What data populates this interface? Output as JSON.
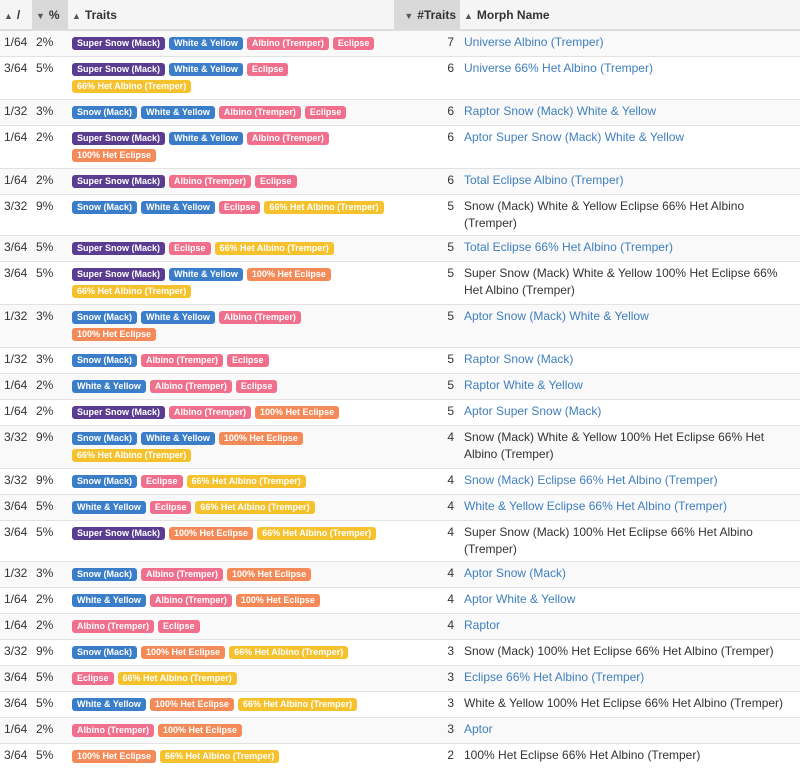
{
  "headers": {
    "ratio": "/",
    "percent": "%",
    "traits": "Traits",
    "num_traits": "#Traits",
    "morph_name": "Morph Name"
  },
  "rows": [
    {
      "ratio": "1/64",
      "pct": "2%",
      "traits": [
        [
          "Super Snow (Mack)",
          "supersnow"
        ],
        [
          "White & Yellow",
          "wy"
        ],
        [
          "Albino (Tremper)",
          "albino"
        ],
        [
          "Eclipse",
          "eclipse"
        ]
      ],
      "n": "7",
      "name": "Universe Albino (Tremper)",
      "link": true
    },
    {
      "ratio": "3/64",
      "pct": "5%",
      "traits": [
        [
          "Super Snow (Mack)",
          "supersnow"
        ],
        [
          "White & Yellow",
          "wy"
        ],
        [
          "Eclipse",
          "eclipse"
        ],
        [
          "66% Het Albino (Tremper)",
          "hetalb"
        ]
      ],
      "n": "6",
      "name": "Universe 66% Het Albino (Tremper)",
      "link": true
    },
    {
      "ratio": "1/32",
      "pct": "3%",
      "traits": [
        [
          "Snow (Mack)",
          "snow"
        ],
        [
          "White & Yellow",
          "wy"
        ],
        [
          "Albino (Tremper)",
          "albino"
        ],
        [
          "Eclipse",
          "eclipse"
        ]
      ],
      "n": "6",
      "name": "Raptor Snow (Mack) White & Yellow",
      "link": true
    },
    {
      "ratio": "1/64",
      "pct": "2%",
      "traits": [
        [
          "Super Snow (Mack)",
          "supersnow"
        ],
        [
          "White & Yellow",
          "wy"
        ],
        [
          "Albino (Tremper)",
          "albino"
        ],
        [
          "100% Het Eclipse",
          "hetecl"
        ]
      ],
      "n": "6",
      "name": "Aptor Super Snow (Mack) White & Yellow",
      "link": true
    },
    {
      "ratio": "1/64",
      "pct": "2%",
      "traits": [
        [
          "Super Snow (Mack)",
          "supersnow"
        ],
        [
          "Albino (Tremper)",
          "albino"
        ],
        [
          "Eclipse",
          "eclipse"
        ]
      ],
      "n": "6",
      "name": "Total Eclipse Albino (Tremper)",
      "link": true
    },
    {
      "ratio": "3/32",
      "pct": "9%",
      "traits": [
        [
          "Snow (Mack)",
          "snow"
        ],
        [
          "White & Yellow",
          "wy"
        ],
        [
          "Eclipse",
          "eclipse"
        ],
        [
          "66% Het Albino (Tremper)",
          "hetalb"
        ]
      ],
      "n": "5",
      "name": "Snow (Mack) White & Yellow Eclipse 66% Het Albino (Tremper)",
      "link": false
    },
    {
      "ratio": "3/64",
      "pct": "5%",
      "traits": [
        [
          "Super Snow (Mack)",
          "supersnow"
        ],
        [
          "Eclipse",
          "eclipse"
        ],
        [
          "66% Het Albino (Tremper)",
          "hetalb"
        ]
      ],
      "n": "5",
      "name": "Total Eclipse 66% Het Albino (Tremper)",
      "link": true
    },
    {
      "ratio": "3/64",
      "pct": "5%",
      "traits": [
        [
          "Super Snow (Mack)",
          "supersnow"
        ],
        [
          "White & Yellow",
          "wy"
        ],
        [
          "100% Het Eclipse",
          "hetecl"
        ],
        [
          "66% Het Albino (Tremper)",
          "hetalb"
        ]
      ],
      "n": "5",
      "name": "Super Snow (Mack) White & Yellow 100% Het Eclipse 66% Het Albino (Tremper)",
      "link": false
    },
    {
      "ratio": "1/32",
      "pct": "3%",
      "traits": [
        [
          "Snow (Mack)",
          "snow"
        ],
        [
          "White & Yellow",
          "wy"
        ],
        [
          "Albino (Tremper)",
          "albino"
        ],
        [
          "100% Het Eclipse",
          "hetecl"
        ]
      ],
      "n": "5",
      "name": "Aptor Snow (Mack) White & Yellow",
      "link": true
    },
    {
      "ratio": "1/32",
      "pct": "3%",
      "traits": [
        [
          "Snow (Mack)",
          "snow"
        ],
        [
          "Albino (Tremper)",
          "albino"
        ],
        [
          "Eclipse",
          "eclipse"
        ]
      ],
      "n": "5",
      "name": "Raptor Snow (Mack)",
      "link": true
    },
    {
      "ratio": "1/64",
      "pct": "2%",
      "traits": [
        [
          "White & Yellow",
          "wy"
        ],
        [
          "Albino (Tremper)",
          "albino"
        ],
        [
          "Eclipse",
          "eclipse"
        ]
      ],
      "n": "5",
      "name": "Raptor White & Yellow",
      "link": true
    },
    {
      "ratio": "1/64",
      "pct": "2%",
      "traits": [
        [
          "Super Snow (Mack)",
          "supersnow"
        ],
        [
          "Albino (Tremper)",
          "albino"
        ],
        [
          "100% Het Eclipse",
          "hetecl"
        ]
      ],
      "n": "5",
      "name": "Aptor Super Snow (Mack)",
      "link": true
    },
    {
      "ratio": "3/32",
      "pct": "9%",
      "traits": [
        [
          "Snow (Mack)",
          "snow"
        ],
        [
          "White & Yellow",
          "wy"
        ],
        [
          "100% Het Eclipse",
          "hetecl"
        ],
        [
          "66% Het Albino (Tremper)",
          "hetalb"
        ]
      ],
      "n": "4",
      "name": "Snow (Mack) White & Yellow 100% Het Eclipse 66% Het Albino (Tremper)",
      "link": false
    },
    {
      "ratio": "3/32",
      "pct": "9%",
      "traits": [
        [
          "Snow (Mack)",
          "snow"
        ],
        [
          "Eclipse",
          "eclipse"
        ],
        [
          "66% Het Albino (Tremper)",
          "hetalb"
        ]
      ],
      "n": "4",
      "name": "Snow (Mack) Eclipse 66% Het Albino (Tremper)",
      "link": true
    },
    {
      "ratio": "3/64",
      "pct": "5%",
      "traits": [
        [
          "White & Yellow",
          "wy"
        ],
        [
          "Eclipse",
          "eclipse"
        ],
        [
          "66% Het Albino (Tremper)",
          "hetalb"
        ]
      ],
      "n": "4",
      "name": "White & Yellow Eclipse 66% Het Albino (Tremper)",
      "link": true
    },
    {
      "ratio": "3/64",
      "pct": "5%",
      "traits": [
        [
          "Super Snow (Mack)",
          "supersnow"
        ],
        [
          "100% Het Eclipse",
          "hetecl"
        ],
        [
          "66% Het Albino (Tremper)",
          "hetalb"
        ]
      ],
      "n": "4",
      "name": "Super Snow (Mack) 100% Het Eclipse 66% Het Albino (Tremper)",
      "link": false
    },
    {
      "ratio": "1/32",
      "pct": "3%",
      "traits": [
        [
          "Snow (Mack)",
          "snow"
        ],
        [
          "Albino (Tremper)",
          "albino"
        ],
        [
          "100% Het Eclipse",
          "hetecl"
        ]
      ],
      "n": "4",
      "name": "Aptor Snow (Mack)",
      "link": true
    },
    {
      "ratio": "1/64",
      "pct": "2%",
      "traits": [
        [
          "White & Yellow",
          "wy"
        ],
        [
          "Albino (Tremper)",
          "albino"
        ],
        [
          "100% Het Eclipse",
          "hetecl"
        ]
      ],
      "n": "4",
      "name": "Aptor White & Yellow",
      "link": true
    },
    {
      "ratio": "1/64",
      "pct": "2%",
      "traits": [
        [
          "Albino (Tremper)",
          "albino"
        ],
        [
          "Eclipse",
          "eclipse"
        ]
      ],
      "n": "4",
      "name": "Raptor",
      "link": true
    },
    {
      "ratio": "3/32",
      "pct": "9%",
      "traits": [
        [
          "Snow (Mack)",
          "snow"
        ],
        [
          "100% Het Eclipse",
          "hetecl"
        ],
        [
          "66% Het Albino (Tremper)",
          "hetalb"
        ]
      ],
      "n": "3",
      "name": "Snow (Mack) 100% Het Eclipse 66% Het Albino (Tremper)",
      "link": false
    },
    {
      "ratio": "3/64",
      "pct": "5%",
      "traits": [
        [
          "Eclipse",
          "eclipse"
        ],
        [
          "66% Het Albino (Tremper)",
          "hetalb"
        ]
      ],
      "n": "3",
      "name": "Eclipse 66% Het Albino (Tremper)",
      "link": true
    },
    {
      "ratio": "3/64",
      "pct": "5%",
      "traits": [
        [
          "White & Yellow",
          "wy"
        ],
        [
          "100% Het Eclipse",
          "hetecl"
        ],
        [
          "66% Het Albino (Tremper)",
          "hetalb"
        ]
      ],
      "n": "3",
      "name": "White & Yellow 100% Het Eclipse 66% Het Albino (Tremper)",
      "link": false
    },
    {
      "ratio": "1/64",
      "pct": "2%",
      "traits": [
        [
          "Albino (Tremper)",
          "albino"
        ],
        [
          "100% Het Eclipse",
          "hetecl"
        ]
      ],
      "n": "3",
      "name": "Aptor",
      "link": true
    },
    {
      "ratio": "3/64",
      "pct": "5%",
      "traits": [
        [
          "100% Het Eclipse",
          "hetecl"
        ],
        [
          "66% Het Albino (Tremper)",
          "hetalb"
        ]
      ],
      "n": "2",
      "name": "100% Het Eclipse 66% Het Albino (Tremper)",
      "link": false
    }
  ],
  "colors": {
    "supersnow": "#5a3c91",
    "snow": "#3a7dc9",
    "wy": "#3a7dc9",
    "albino": "#ef6f8c",
    "eclipse": "#ef6f8c",
    "hetecl": "#f48a58",
    "hetalb": "#f5c22e",
    "link": "#3f7fbf"
  }
}
